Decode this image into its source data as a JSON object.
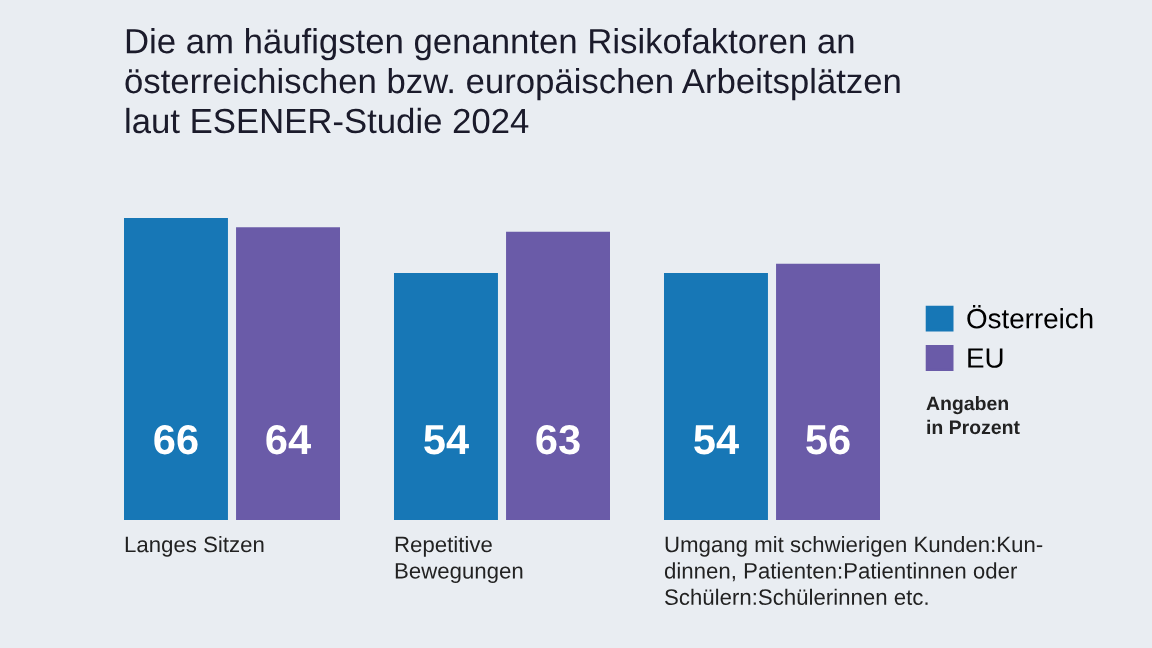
{
  "chart_data": {
    "type": "bar",
    "title": "Die am häufigsten genannten Risikofaktoren an\nösterreichischen bzw. europäischen Arbeitsplätzen\nlaut ESENER-Studie 2024",
    "categories": [
      "Langes Sitzen",
      "Repetitive\nBewegungen",
      "Umgang mit schwierigen Kunden:Kun-\ndinnen, Patienten:Patientinnen oder\nSchülern:Schülerinnen etc."
    ],
    "series": [
      {
        "name": "Österreich",
        "color": "#1777b6",
        "values": [
          66,
          54,
          54
        ]
      },
      {
        "name": "EU",
        "color": "#6a5ba8",
        "values": [
          64,
          63,
          56
        ]
      }
    ],
    "data_labels": true,
    "legend": "right",
    "annotations": [
      "Angaben\nin Prozent"
    ]
  }
}
